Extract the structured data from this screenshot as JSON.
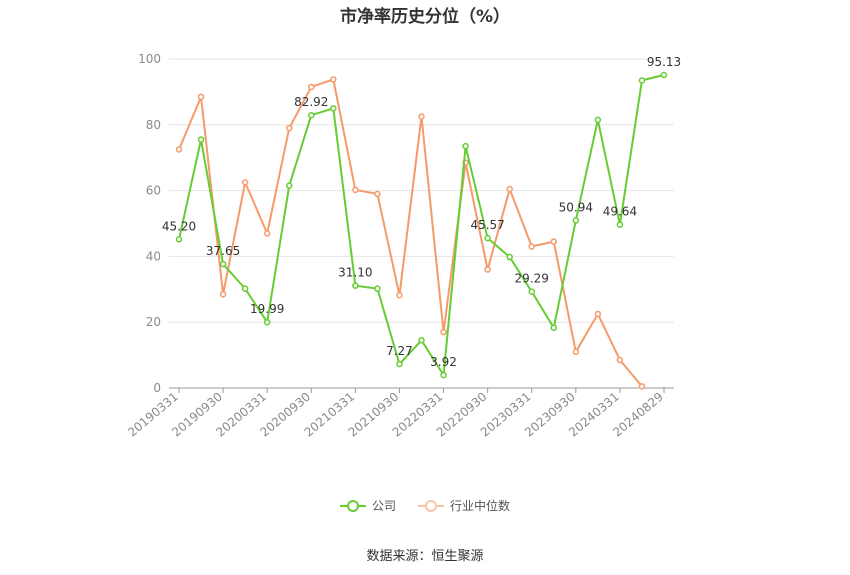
{
  "chart_data": {
    "type": "line",
    "title": "市净率历史分位（%）",
    "ylim": [
      0,
      100
    ],
    "yticks": [
      0,
      20,
      40,
      60,
      80,
      100
    ],
    "grid": true,
    "legend_position": "bottom",
    "x": [
      "20190331",
      "20190630",
      "20190930",
      "20191231",
      "20200331",
      "20200630",
      "20200930",
      "20201231",
      "20210331",
      "20210630",
      "20210930",
      "20211231",
      "20220331",
      "20220630",
      "20220930",
      "20221231",
      "20230331",
      "20230630",
      "20230930",
      "20231231",
      "20240331",
      "20240630",
      "20240829"
    ],
    "x_tick_labels": [
      "20190331",
      "20190930",
      "20200331",
      "20200930",
      "20210331",
      "20210930",
      "20220331",
      "20220930",
      "20230331",
      "20230930",
      "20240331",
      "20240829"
    ],
    "series": [
      {
        "name": "公司",
        "color": "#66cc33",
        "values": [
          45.2,
          75.5,
          37.65,
          30.2,
          19.99,
          61.5,
          82.92,
          85.0,
          31.1,
          30.2,
          7.27,
          14.5,
          3.92,
          73.5,
          45.57,
          39.8,
          29.29,
          18.3,
          50.94,
          81.5,
          49.64,
          93.5,
          95.13
        ],
        "labeled_points": [
          {
            "index": 0,
            "label": "45.20"
          },
          {
            "index": 2,
            "label": "37.65"
          },
          {
            "index": 4,
            "label": "19.99"
          },
          {
            "index": 6,
            "label": "82.92"
          },
          {
            "index": 8,
            "label": "31.10"
          },
          {
            "index": 10,
            "label": "7.27"
          },
          {
            "index": 12,
            "label": "3.92"
          },
          {
            "index": 14,
            "label": "45.57"
          },
          {
            "index": 16,
            "label": "29.29"
          },
          {
            "index": 18,
            "label": "50.94"
          },
          {
            "index": 20,
            "label": "49.64"
          },
          {
            "index": 22,
            "label": "95.13"
          }
        ]
      },
      {
        "name": "行业中位数",
        "color": "#f59a6a",
        "values": [
          72.5,
          88.5,
          28.5,
          62.5,
          47.0,
          79.0,
          91.5,
          93.8,
          60.2,
          59.0,
          28.2,
          82.5,
          17.0,
          68.5,
          36.0,
          60.5,
          43.0,
          44.5,
          11.0,
          22.5,
          8.5,
          0.5,
          null
        ]
      }
    ]
  },
  "footer": {
    "source": "数据来源：恒生聚源"
  }
}
